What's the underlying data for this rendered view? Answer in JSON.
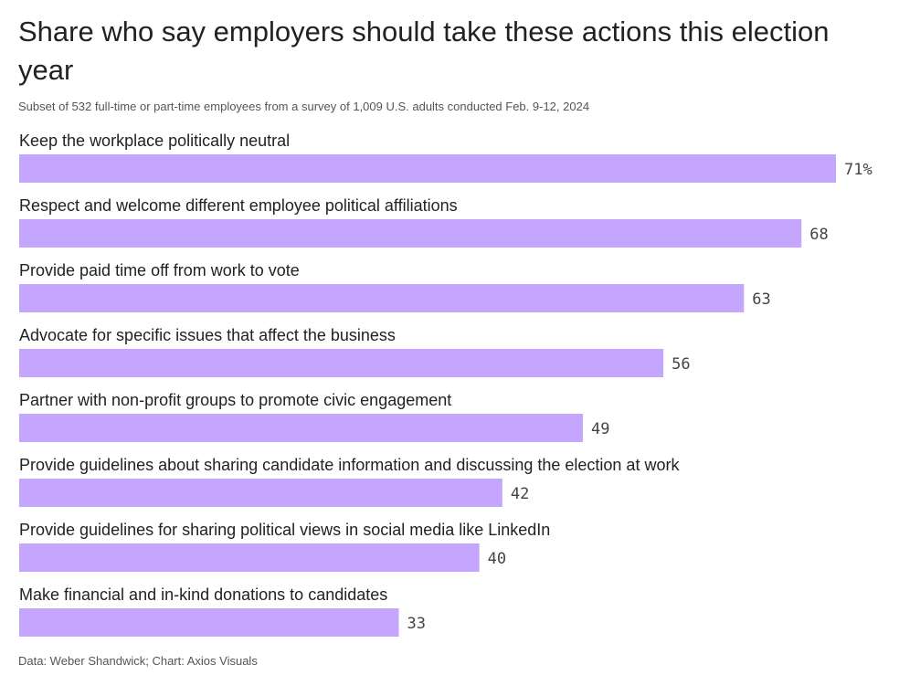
{
  "title": "Share who say employers should take these actions this election year",
  "subtitle": "Subset of 532 full-time or part-time employees from a survey of 1,009 U.S. adults conducted Feb. 9-12, 2024",
  "footer": {
    "data_source": "Data: Weber Shandwick",
    "chart_credit": "Chart: Axios Visuals"
  },
  "colors": {
    "bar": "#c4a6ff",
    "text": "#222222",
    "muted": "#555555"
  },
  "chart_data": {
    "type": "bar",
    "orientation": "horizontal",
    "categories": [
      "Keep the workplace politically neutral",
      "Respect and welcome different employee political affiliations",
      "Provide paid time off from work to vote",
      "Advocate for specific issues that affect the business",
      "Partner with non-profit groups to promote civic engagement",
      "Provide guidelines about sharing candidate information and discussing the election at work",
      "Provide guidelines for sharing political views in social media like LinkedIn",
      "Make financial and in-kind donations to candidates"
    ],
    "values": [
      71,
      68,
      63,
      56,
      49,
      42,
      40,
      33
    ],
    "value_labels": [
      "71%",
      "68",
      "63",
      "56",
      "49",
      "42",
      "40",
      "33"
    ],
    "unit": "%",
    "xlim": [
      0,
      71
    ],
    "grid": false,
    "legend": "none"
  }
}
